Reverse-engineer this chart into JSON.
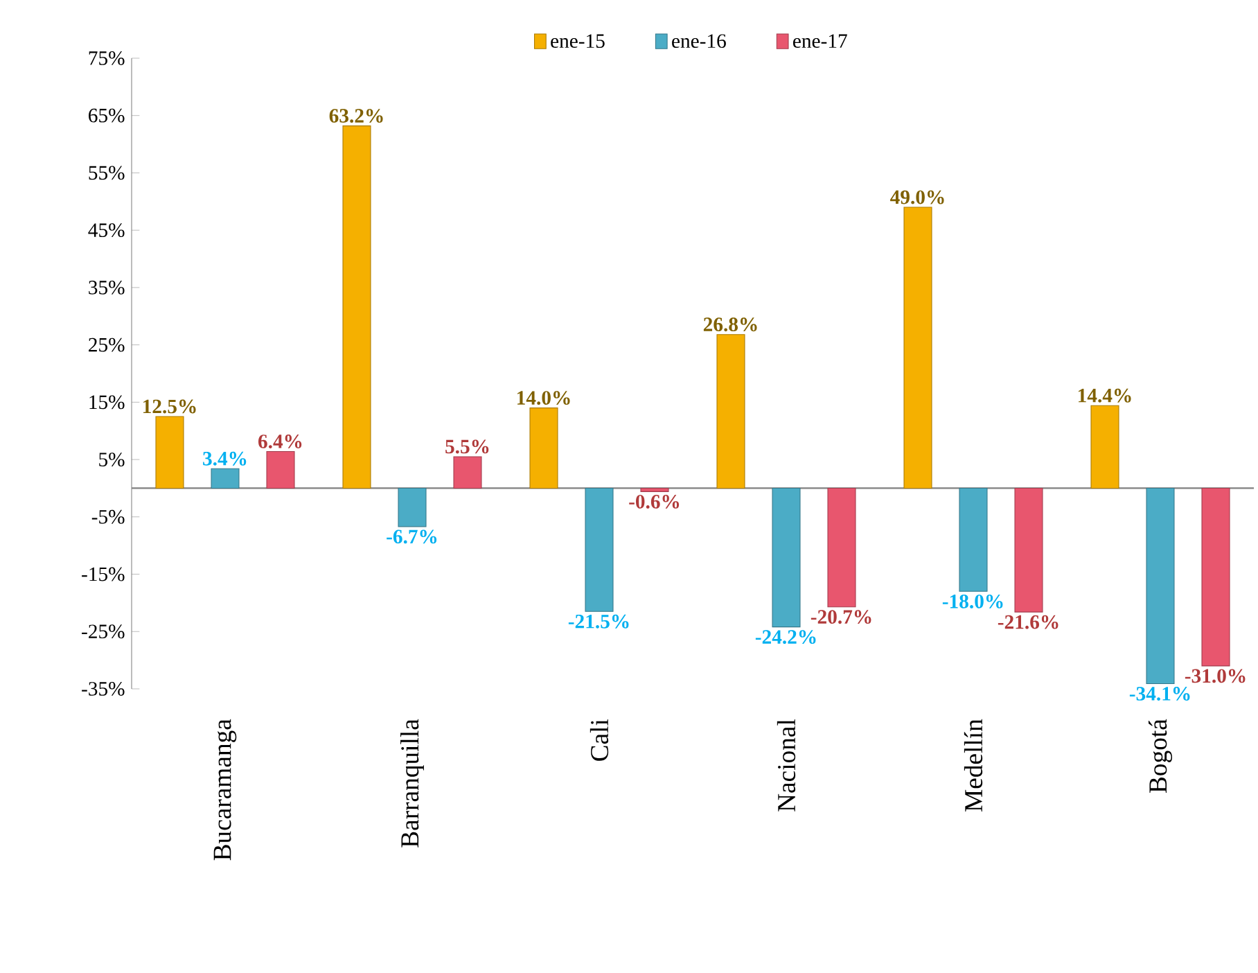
{
  "chart_data": {
    "type": "bar",
    "categories": [
      "Bucaramanga",
      "Barranquilla",
      "Cali",
      "Nacional",
      "Medellín",
      "Bogotá"
    ],
    "series": [
      {
        "name": "ene-15",
        "color": "#f5b000",
        "values": [
          12.5,
          63.2,
          14.0,
          26.8,
          49.0,
          14.4
        ],
        "value_labels": [
          "12.5%",
          "63.2%",
          "14.0%",
          "26.8%",
          "49.0%",
          "14.4%"
        ]
      },
      {
        "name": "ene-16",
        "color": "#4bacc6",
        "values": [
          3.4,
          -6.7,
          -21.5,
          -24.2,
          -18.0,
          -34.1
        ],
        "value_labels": [
          "3.4%",
          "-6.7%",
          "-21.5%",
          "-24.2%",
          "-18.0%",
          "-34.1%"
        ]
      },
      {
        "name": "ene-17",
        "color": "#e8566e",
        "values": [
          6.4,
          5.5,
          -0.6,
          -20.7,
          -21.6,
          -31.0
        ],
        "value_labels": [
          "6.4%",
          "5.5%",
          "-0.6%",
          "-20.7%",
          "-21.6%",
          "-31.0%"
        ]
      }
    ],
    "ylim": [
      -35,
      75
    ],
    "yticks": [
      {
        "value": -35,
        "label": "-35%"
      },
      {
        "value": -25,
        "label": "-25%"
      },
      {
        "value": -15,
        "label": "-15%"
      },
      {
        "value": -5,
        "label": "-5%"
      },
      {
        "value": 5,
        "label": "5%"
      },
      {
        "value": 15,
        "label": "15%"
      },
      {
        "value": 25,
        "label": "25%"
      },
      {
        "value": 35,
        "label": "35%"
      },
      {
        "value": 45,
        "label": "45%"
      },
      {
        "value": 55,
        "label": "55%"
      },
      {
        "value": 65,
        "label": "65%"
      },
      {
        "value": 75,
        "label": "75%"
      }
    ],
    "grid": false,
    "legend": "top"
  }
}
